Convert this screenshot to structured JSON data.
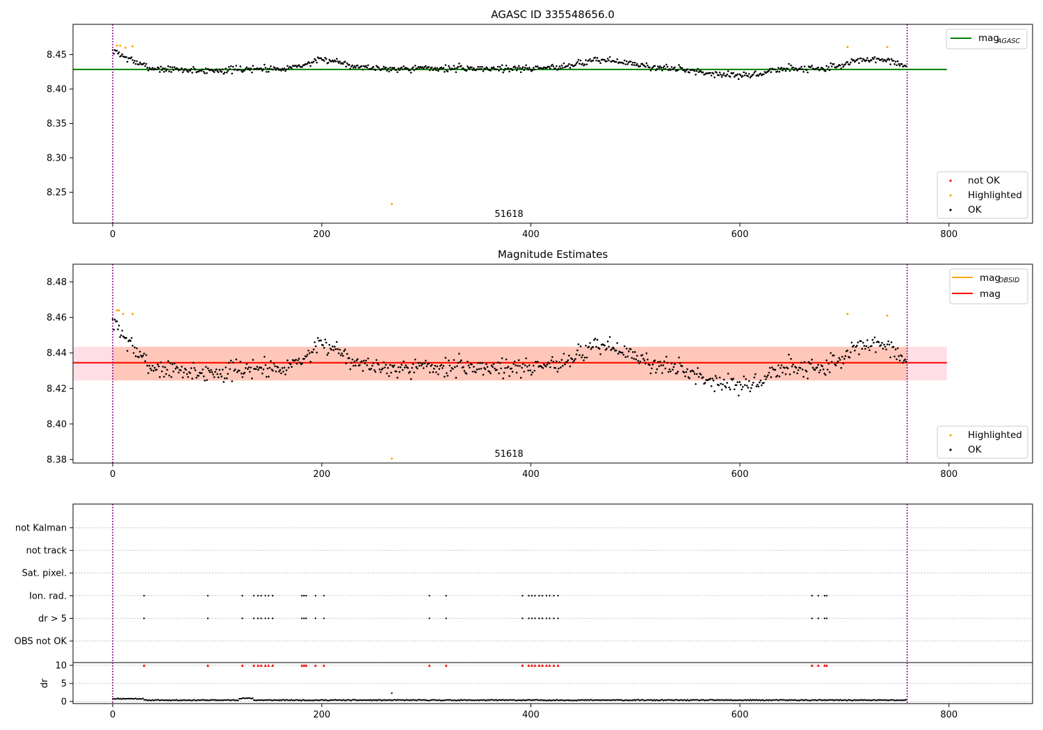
{
  "chart_data": [
    {
      "type": "scatter",
      "title": "AGASC ID 335548656.0",
      "xlabel": "",
      "ylabel": "",
      "xlim": [
        -38,
        880
      ],
      "ylim": [
        8.205,
        8.494
      ],
      "xticks": [
        "0",
        "200",
        "400",
        "600",
        "800"
      ],
      "yticks": [
        "8.25",
        "8.30",
        "8.35",
        "8.40",
        "8.45"
      ],
      "annotation": "51618",
      "hlines": [
        {
          "name": "mag",
          "name_sub": "AGASC",
          "y": 8.4285,
          "color": "#008000"
        }
      ],
      "vlines": [
        0,
        760
      ],
      "vline_color": "#800080",
      "series_base": {
        "name": "OK",
        "color": "#000000",
        "x_range": [
          0,
          760
        ],
        "n": 759,
        "seed": 7,
        "shape": "agasc"
      },
      "highlighted": {
        "name": "Highlighted",
        "color": "#ffa500",
        "points": [
          [
            4,
            8.463
          ],
          [
            7,
            8.463
          ],
          [
            12,
            8.46
          ],
          [
            19,
            8.462
          ],
          [
            267,
            8.233
          ],
          [
            703,
            8.461
          ],
          [
            741,
            8.461
          ]
        ]
      },
      "legend_series": [
        {
          "label": "not OK",
          "color": "#ff0000"
        },
        {
          "label": "Highlighted",
          "color": "#ffa500"
        },
        {
          "label": "OK",
          "color": "#000000"
        }
      ],
      "legend_lines_position": "top-right",
      "legend_points_position": "lower-right"
    },
    {
      "type": "scatter",
      "title": "Magnitude Estimates",
      "xlabel": "",
      "ylabel": "",
      "xlim": [
        -38,
        880
      ],
      "ylim": [
        8.378,
        8.49
      ],
      "xticks": [
        "0",
        "200",
        "400",
        "600",
        "800"
      ],
      "yticks": [
        "8.38",
        "8.40",
        "8.42",
        "8.44",
        "8.46",
        "8.48"
      ],
      "annotation": "51618",
      "hlines": [
        {
          "name": "mag",
          "name_sub": "OBSID",
          "color": "#ffa500",
          "segments": [
            [
              0,
              760,
              8.4345
            ]
          ]
        },
        {
          "name": "mag",
          "name_sub": "",
          "y": 8.4345,
          "color": "#ff0000"
        }
      ],
      "band": {
        "y_low": 8.4245,
        "y_high": 8.4435,
        "x_from": -38,
        "x_to": 798,
        "color_outer": "#ffc0cb",
        "color_inner": "#ffa07a"
      },
      "vlines": [
        0,
        760
      ],
      "vline_color": "#800080",
      "series_base": {
        "name": "OK",
        "color": "#000000",
        "x_range": [
          0,
          760
        ],
        "n": 759,
        "seed": 7,
        "shape": "obsid"
      },
      "highlighted": {
        "name": "Highlighted",
        "color": "#ffa500",
        "points": [
          [
            4,
            8.464
          ],
          [
            6,
            8.464
          ],
          [
            10,
            8.462
          ],
          [
            19,
            8.462
          ],
          [
            267,
            8.3805
          ],
          [
            703,
            8.462
          ],
          [
            741,
            8.461
          ]
        ]
      },
      "legend_series": [
        {
          "label": "Highlighted",
          "color": "#ffa500"
        },
        {
          "label": "OK",
          "color": "#000000"
        }
      ]
    },
    {
      "type": "scatter",
      "title": "",
      "xlim": [
        -38,
        880
      ],
      "xticks": [
        "0",
        "200",
        "400",
        "600",
        "800"
      ],
      "flag_rows": [
        "not Kalman",
        "not track",
        "Sat. pixel.",
        "Ion. rad.",
        "dr > 5",
        "OBS not OK"
      ],
      "flag_x": [
        30,
        91,
        124,
        135,
        139,
        142,
        146,
        149,
        153,
        181,
        183,
        185,
        194,
        202,
        303,
        319,
        392,
        398,
        401,
        404,
        408,
        411,
        415,
        418,
        422,
        426,
        669,
        675,
        681,
        683
      ],
      "flagged_rows": [
        "Ion. rad.",
        "dr > 5"
      ],
      "dr_ylabel": "dr",
      "dr_yticks": [
        "0",
        "5",
        "10"
      ],
      "dr_ylim": [
        -0.4,
        10.2
      ],
      "dr_clip": 10,
      "dr_outlier": [
        267,
        2.3
      ],
      "dr_marker_color": "#ff0000"
    }
  ]
}
